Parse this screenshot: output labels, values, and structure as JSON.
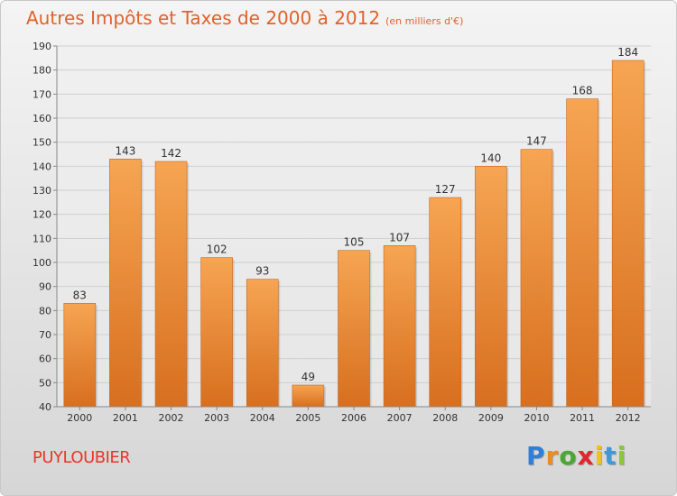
{
  "header": {
    "title": "Autres Impôts et Taxes de 2000 à 2012",
    "subtitle": "(en milliers d'€)"
  },
  "commune": "PUYLOUBIER",
  "logo": {
    "letters": [
      "P",
      "r",
      "o",
      "x",
      "i",
      "t",
      "i"
    ],
    "colors": [
      "#2f7fd6",
      "#f08a1c",
      "#4aa832",
      "#e2262b",
      "#f2c21c",
      "#3d9ad9",
      "#8cc63f"
    ]
  },
  "colors": {
    "title": "#e1622b",
    "commune": "#e8362a",
    "bar_top": "#f6a552",
    "bar_bottom": "#d76f1f",
    "label": "#333333"
  },
  "chart_data": {
    "type": "bar",
    "categories": [
      "2000",
      "2001",
      "2002",
      "2003",
      "2004",
      "2005",
      "2006",
      "2007",
      "2008",
      "2009",
      "2010",
      "2011",
      "2012"
    ],
    "values": [
      83,
      143,
      142,
      102,
      93,
      49,
      105,
      107,
      127,
      140,
      147,
      168,
      184
    ],
    "data_labels": [
      "83",
      "143",
      "142",
      "102",
      "93",
      "49",
      "105",
      "107",
      "127",
      "140",
      "147",
      "168",
      "184"
    ],
    "title": "Autres Impôts et Taxes de 2000 à 2012",
    "subtitle": "(en milliers d'€)",
    "xlabel": "",
    "ylabel": "",
    "ylim": [
      40,
      190
    ],
    "yticks": [
      40,
      50,
      60,
      70,
      80,
      90,
      100,
      110,
      120,
      130,
      140,
      150,
      160,
      170,
      180,
      190
    ],
    "grid": true,
    "legend": "none"
  }
}
